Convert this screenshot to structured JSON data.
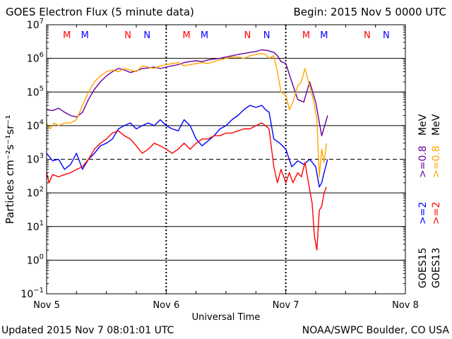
{
  "header": {
    "title": "GOES Electron Flux (5 minute data)",
    "begin": "Begin: 2015 Nov 5 0000 UTC"
  },
  "footer": {
    "updated": "Updated 2015 Nov  7 08:01:01 UTC",
    "source": "NOAA/SWPC Boulder, CO USA"
  },
  "colors": {
    "g15_low": "#0000ff",
    "g13_low": "#ff0000",
    "g15_high": "#660099",
    "g13_high": "#ffa500",
    "marker_m_red": "#ff0000",
    "marker_m_blue": "#0000ff",
    "marker_n_red": "#ff0000",
    "marker_n_blue": "#0000ff"
  },
  "chart_data": {
    "type": "line",
    "xlabel": "Universal Time",
    "ylabel": "Particles cm⁻²s⁻¹sr⁻¹",
    "x_units": "days since 2015 Nov 5 0000 UTC",
    "xlim": [
      0,
      3
    ],
    "x_ticks": [
      {
        "x": 0,
        "label": "Nov 5"
      },
      {
        "x": 1,
        "label": "Nov 6"
      },
      {
        "x": 2,
        "label": "Nov 7"
      },
      {
        "x": 3,
        "label": "Nov 8"
      }
    ],
    "y_scale": "log",
    "ylim": [
      -1,
      7
    ],
    "y_ticks": [
      {
        "exp": 7,
        "base": "10",
        "sup": "7"
      },
      {
        "exp": 6,
        "base": "10",
        "sup": "6"
      },
      {
        "exp": 5,
        "base": "10",
        "sup": "5"
      },
      {
        "exp": 4,
        "base": "10",
        "sup": "4"
      },
      {
        "exp": 3,
        "base": "10",
        "sup": "3"
      },
      {
        "exp": 2,
        "base": "10",
        "sup": "2"
      },
      {
        "exp": 1,
        "base": "10",
        "sup": "1"
      },
      {
        "exp": 0,
        "base": "10",
        "sup": "0"
      },
      {
        "exp": -1,
        "base": "10",
        "sup": "−1"
      }
    ],
    "solid_gridlines_exp": [
      6,
      5,
      4,
      2,
      1,
      0
    ],
    "dashed_gridline_exp": 3,
    "markers": [
      {
        "x": 0.17,
        "label": "M",
        "color": "red"
      },
      {
        "x": 0.32,
        "label": "M",
        "color": "blue"
      },
      {
        "x": 0.68,
        "label": "N",
        "color": "red"
      },
      {
        "x": 0.84,
        "label": "N",
        "color": "blue"
      },
      {
        "x": 1.17,
        "label": "M",
        "color": "red"
      },
      {
        "x": 1.32,
        "label": "M",
        "color": "blue"
      },
      {
        "x": 1.68,
        "label": "N",
        "color": "red"
      },
      {
        "x": 1.84,
        "label": "N",
        "color": "blue"
      },
      {
        "x": 2.17,
        "label": "M",
        "color": "red"
      },
      {
        "x": 2.32,
        "label": "M",
        "color": "blue"
      },
      {
        "x": 2.68,
        "label": "N",
        "color": "red"
      },
      {
        "x": 2.84,
        "label": "N",
        "color": "blue"
      }
    ],
    "legend": {
      "placement": "right, vertical",
      "satellites": [
        "GOES15",
        "GOES13"
      ],
      "entries": [
        {
          "text": ">=2",
          "color": "blue"
        },
        {
          "text": ">=2",
          "color": "red"
        },
        {
          "text": ">=0.8",
          "color": "purple"
        },
        {
          "text": ">=0.8",
          "color": "orange"
        },
        {
          "text": "MeV",
          "color": "black"
        }
      ]
    },
    "series": [
      {
        "name": "GOES15 >=0.8 MeV",
        "color_key": "g15_high",
        "x": [
          0,
          0.05,
          0.1,
          0.15,
          0.2,
          0.25,
          0.3,
          0.35,
          0.4,
          0.45,
          0.5,
          0.55,
          0.6,
          0.65,
          0.7,
          0.75,
          0.8,
          0.85,
          0.9,
          0.95,
          1.0,
          1.05,
          1.1,
          1.15,
          1.2,
          1.25,
          1.3,
          1.35,
          1.4,
          1.45,
          1.5,
          1.55,
          1.6,
          1.65,
          1.7,
          1.75,
          1.8,
          1.85,
          1.9,
          1.93,
          1.96,
          2.0,
          2.05,
          2.1,
          2.15,
          2.2,
          2.25,
          2.3,
          2.35
        ],
        "y": [
          30000,
          28000,
          33000,
          25000,
          20000,
          18000,
          25000,
          60000,
          120000,
          200000,
          300000,
          400000,
          500000,
          450000,
          380000,
          420000,
          500000,
          520000,
          550000,
          500000,
          550000,
          600000,
          650000,
          750000,
          800000,
          850000,
          800000,
          900000,
          950000,
          1000000,
          1100000,
          1200000,
          1300000,
          1400000,
          1500000,
          1600000,
          1800000,
          1700000,
          1500000,
          1200000,
          800000,
          700000,
          200000,
          60000,
          50000,
          200000,
          50000,
          5000,
          20000
        ]
      },
      {
        "name": "GOES13 >=0.8 MeV",
        "color_key": "g13_high",
        "x": [
          0,
          0.03,
          0.06,
          0.1,
          0.15,
          0.2,
          0.25,
          0.3,
          0.35,
          0.4,
          0.45,
          0.5,
          0.55,
          0.6,
          0.65,
          0.7,
          0.75,
          0.8,
          0.85,
          0.9,
          0.95,
          1.0,
          1.05,
          1.1,
          1.15,
          1.2,
          1.25,
          1.3,
          1.35,
          1.4,
          1.45,
          1.5,
          1.55,
          1.6,
          1.65,
          1.7,
          1.75,
          1.8,
          1.83,
          1.86,
          1.9,
          1.93,
          1.96,
          2.0,
          2.03,
          2.06,
          2.1,
          2.13,
          2.16,
          2.2,
          2.23,
          2.26,
          2.28,
          2.3,
          2.32,
          2.34
        ],
        "y": [
          12000,
          8000,
          12000,
          10000,
          12000,
          12000,
          15000,
          40000,
          100000,
          200000,
          300000,
          400000,
          450000,
          400000,
          500000,
          450000,
          400000,
          600000,
          550000,
          500000,
          600000,
          650000,
          700000,
          750000,
          600000,
          650000,
          700000,
          750000,
          700000,
          800000,
          900000,
          1000000,
          1100000,
          1100000,
          1000000,
          1200000,
          1300000,
          1400000,
          1300000,
          1000000,
          1200000,
          400000,
          100000,
          80000,
          30000,
          50000,
          150000,
          200000,
          500000,
          150000,
          60000,
          15000,
          300,
          2000,
          800,
          3000
        ]
      },
      {
        "name": "GOES15 >=2 MeV",
        "color_key": "g15_low",
        "x": [
          0,
          0.05,
          0.1,
          0.15,
          0.2,
          0.25,
          0.3,
          0.35,
          0.4,
          0.45,
          0.5,
          0.55,
          0.6,
          0.65,
          0.7,
          0.75,
          0.8,
          0.85,
          0.9,
          0.95,
          1.0,
          1.05,
          1.1,
          1.15,
          1.2,
          1.25,
          1.3,
          1.35,
          1.4,
          1.45,
          1.5,
          1.55,
          1.6,
          1.65,
          1.7,
          1.75,
          1.8,
          1.83,
          1.86,
          1.9,
          1.95,
          2.0,
          2.05,
          2.1,
          2.15,
          2.2,
          2.25,
          2.28,
          2.3,
          2.32,
          2.35
        ],
        "y": [
          1500,
          900,
          1000,
          500,
          700,
          1500,
          500,
          1000,
          1500,
          2500,
          3000,
          4000,
          8000,
          10000,
          12000,
          8000,
          10000,
          12000,
          10000,
          15000,
          10000,
          8000,
          7000,
          15000,
          10000,
          4000,
          2500,
          3500,
          5000,
          8000,
          10000,
          15000,
          20000,
          30000,
          40000,
          35000,
          40000,
          30000,
          25000,
          4000,
          3000,
          2000,
          600,
          900,
          700,
          1000,
          600,
          150,
          200,
          400,
          1000
        ]
      },
      {
        "name": "GOES13 >=2 MeV",
        "color_key": "g13_low",
        "x": [
          0,
          0.02,
          0.05,
          0.1,
          0.15,
          0.2,
          0.25,
          0.3,
          0.35,
          0.4,
          0.45,
          0.5,
          0.55,
          0.6,
          0.65,
          0.7,
          0.75,
          0.8,
          0.85,
          0.9,
          0.95,
          1.0,
          1.05,
          1.1,
          1.15,
          1.2,
          1.25,
          1.3,
          1.35,
          1.4,
          1.45,
          1.5,
          1.55,
          1.6,
          1.65,
          1.7,
          1.75,
          1.8,
          1.83,
          1.86,
          1.9,
          1.93,
          1.96,
          2.0,
          2.03,
          2.06,
          2.1,
          2.13,
          2.16,
          2.19,
          2.22,
          2.24,
          2.26,
          2.28,
          2.3,
          2.32,
          2.34
        ],
        "y": [
          400,
          200,
          350,
          300,
          350,
          400,
          500,
          600,
          1000,
          2000,
          3000,
          4000,
          6000,
          7000,
          5000,
          4000,
          2500,
          1500,
          2000,
          3000,
          2500,
          2000,
          1500,
          2000,
          3000,
          2000,
          3000,
          4000,
          4000,
          5000,
          5000,
          6000,
          6000,
          7000,
          8000,
          8000,
          10000,
          12000,
          10000,
          8000,
          600,
          200,
          500,
          200,
          400,
          200,
          400,
          300,
          800,
          200,
          50,
          5,
          2,
          30,
          40,
          100,
          150
        ]
      }
    ]
  }
}
